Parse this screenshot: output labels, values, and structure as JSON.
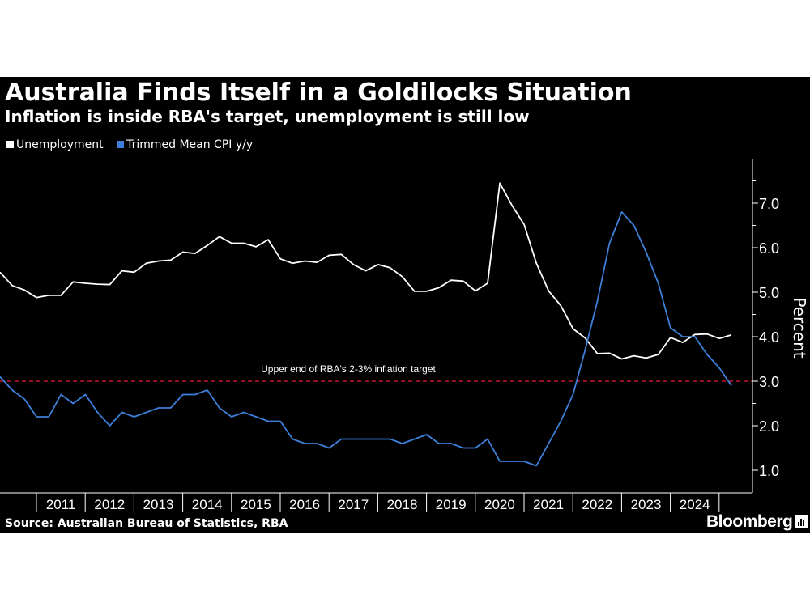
{
  "title": "Australia Finds Itself in a Goldilocks Situation",
  "subtitle": "Inflation is inside RBA's target, unemployment is still low",
  "source": "Source: Australian Bureau of Statistics, RBA",
  "brand": "Bloomberg",
  "colors": {
    "background": "#000000",
    "unemployment": "#ffffff",
    "cpi": "#3d7fd9",
    "target_line": "#c0152f",
    "axis": "#ffffff"
  },
  "chart_data": {
    "type": "line",
    "title": "Australia Finds Itself in a Goldilocks Situation",
    "subtitle": "Inflation is inside RBA's target, unemployment is still low",
    "ylabel": "Percent",
    "xlabel": "",
    "ylim": [
      0.5,
      7.9
    ],
    "y_ticks": [
      "1.0",
      "2.0",
      "3.0",
      "4.0",
      "5.0",
      "6.0",
      "7.0"
    ],
    "x_ticks": [
      "2011",
      "2012",
      "2013",
      "2014",
      "2015",
      "2016",
      "2017",
      "2018",
      "2019",
      "2020",
      "2021",
      "2022",
      "2023",
      "2024"
    ],
    "grid": false,
    "legend_position": "top-left",
    "x_unit": "quarter, starting 2010 Q2",
    "series": [
      {
        "name": "Unemployment",
        "color": "#ffffff",
        "values": [
          5.45,
          5.15,
          5.05,
          4.88,
          4.93,
          4.93,
          5.23,
          5.2,
          5.18,
          5.17,
          5.48,
          5.45,
          5.65,
          5.7,
          5.72,
          5.9,
          5.87,
          6.05,
          6.25,
          6.1,
          6.1,
          6.02,
          6.18,
          5.75,
          5.65,
          5.7,
          5.67,
          5.83,
          5.85,
          5.62,
          5.48,
          5.62,
          5.55,
          5.35,
          5.02,
          5.02,
          5.1,
          5.27,
          5.25,
          5.03,
          5.2,
          7.45,
          6.95,
          6.52,
          5.65,
          5.03,
          4.7,
          4.18,
          3.97,
          3.62,
          3.63,
          3.5,
          3.57,
          3.52,
          3.6,
          3.98,
          3.87,
          4.05,
          4.06,
          3.96,
          4.04
        ]
      },
      {
        "name": "Trimmed Mean CPI y/y",
        "color": "#3d7fd9",
        "values": [
          3.1,
          2.8,
          2.6,
          2.2,
          2.2,
          2.7,
          2.5,
          2.7,
          2.3,
          2.0,
          2.3,
          2.2,
          2.3,
          2.4,
          2.4,
          2.7,
          2.7,
          2.8,
          2.4,
          2.2,
          2.3,
          2.2,
          2.1,
          2.1,
          1.7,
          1.6,
          1.6,
          1.5,
          1.7,
          1.7,
          1.7,
          1.7,
          1.7,
          1.6,
          1.7,
          1.8,
          1.6,
          1.6,
          1.5,
          1.5,
          1.7,
          1.2,
          1.2,
          1.2,
          1.1,
          1.6,
          2.1,
          2.7,
          3.7,
          4.8,
          6.1,
          6.8,
          6.5,
          5.9,
          5.2,
          4.2,
          4.0,
          4.0,
          3.6,
          3.3,
          2.9
        ]
      }
    ],
    "annotations": [
      {
        "type": "hline",
        "y": 3.0,
        "style": "dashed",
        "color": "#c0152f",
        "label": "Upper end of RBA's 2-3% inflation target"
      }
    ]
  }
}
